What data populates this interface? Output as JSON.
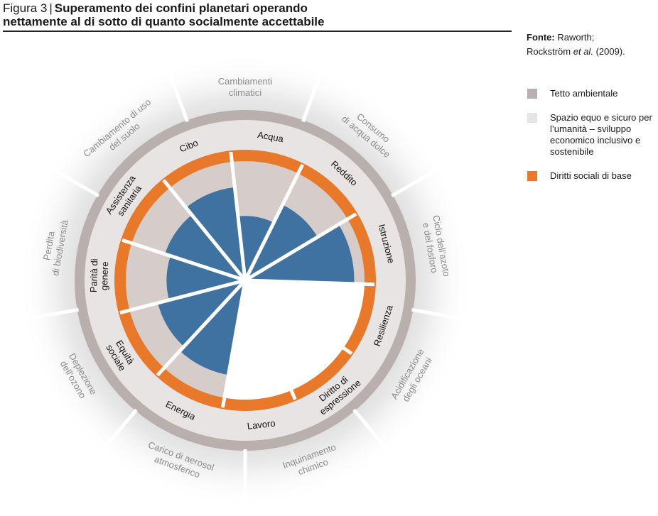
{
  "title": {
    "prefix": "Figura 3",
    "separator": "|",
    "line1": "Superamento dei confini planetari operando",
    "line2": "nettamente al di sotto di quanto socialmente accettabile"
  },
  "source": {
    "label": "Fonte:",
    "text1": "Raworth;",
    "text2": "Rockström",
    "text3": "et al.",
    "text4": "(2009)."
  },
  "legend": [
    {
      "label": "Tetto ambientale",
      "color": "#b9b0ae"
    },
    {
      "label": "Spazio equo e sicuro per l’umanità – sviluppo economico inclusivo e sostenibile",
      "color": "#e8e4e4"
    },
    {
      "label": "Diritti sociali di base",
      "color": "#e8782a"
    }
  ],
  "colors": {
    "outer_ring": "#b9b0ae",
    "safe_space": "#e8e4e4",
    "inner_wedge": "#d6cdca",
    "social_ring": "#e8782a",
    "deficit": "#3f72a1",
    "outer_text": "#8a8a8a",
    "white": "#ffffff"
  },
  "planetary_boundaries": [
    "Cambiamenti\nclimatici",
    "Consumo\ndi acqua dolce",
    "Ciclo dell’azoto\ne del fosforo",
    "Acidificazione\ndegli oceani",
    "Inquinamento\nchimico",
    "Carico di aerosol\natmosferico",
    "Deplezione\ndell’ozono",
    "Perdita\ndi biodiversità",
    "Cambiamento di uso\ndel suolo"
  ],
  "social_foundations": [
    {
      "label": "Acqua",
      "deficit": 0.55
    },
    {
      "label": "Reddito",
      "deficit": 0.72
    },
    {
      "label": "Istruzione",
      "deficit": 0.93
    },
    {
      "label": "Resilienza",
      "deficit": 0
    },
    {
      "label": "Diritto di\nespressione",
      "deficit": 0
    },
    {
      "label": "Lavoro",
      "deficit": 0
    },
    {
      "label": "Energia",
      "deficit": 0.82
    },
    {
      "label": "Equità\nsociale",
      "deficit": 0.77
    },
    {
      "label": "Parità di\ngenere",
      "deficit": 0.67
    },
    {
      "label": "Assistenza\nsanitaria",
      "deficit": 0.72
    },
    {
      "label": "Cibo",
      "deficit": 0.8
    }
  ]
}
